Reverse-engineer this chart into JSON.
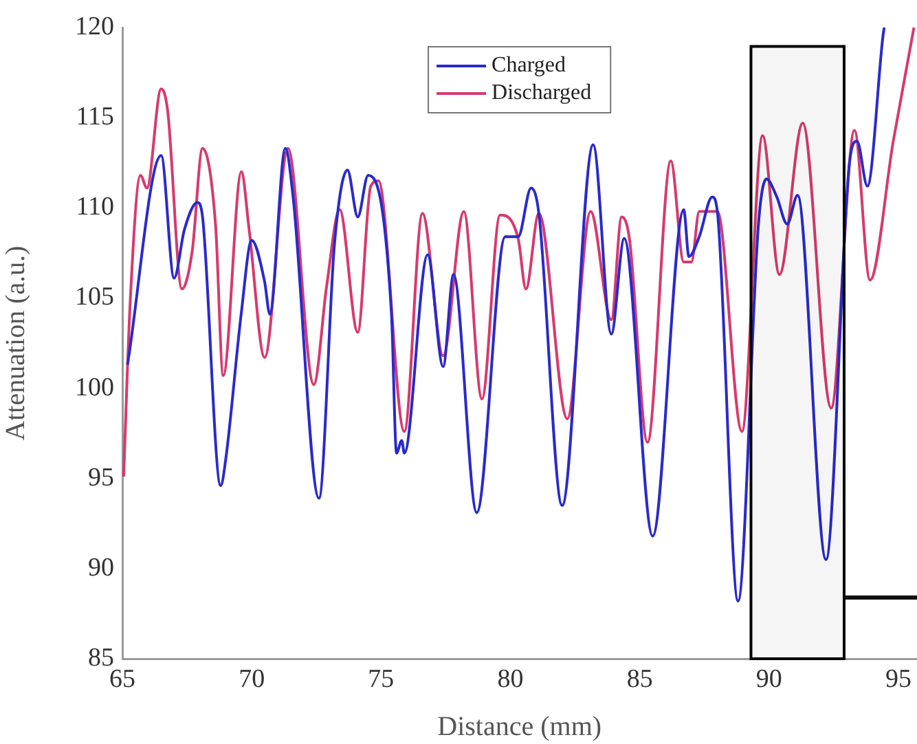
{
  "chart_data": {
    "type": "line",
    "xlabel": "Distance (mm)",
    "ylabel": "Attenuation (a.u.)",
    "xlim": [
      65,
      95.7
    ],
    "xticks": [
      65,
      70,
      75,
      80,
      85,
      90,
      95
    ],
    "ylim": [
      85,
      120
    ],
    "yticks": [
      85,
      90,
      95,
      100,
      105,
      110,
      115,
      120
    ],
    "grid": false,
    "legend": "top",
    "marker": "none",
    "line_style": "solid",
    "bands": [
      {
        "axis": "x",
        "from": 89.3,
        "to": 92.9,
        "color": "#000000"
      }
    ],
    "series": [
      {
        "name": "Charged",
        "color": "#2a2acb",
        "x": [
          65.2,
          66.5,
          67.0,
          67.4,
          67.9,
          68.1,
          68.8,
          69.0,
          69.6,
          70.0,
          70.5,
          70.7,
          71.3,
          71.6,
          72.6,
          73.2,
          73.7,
          74.1,
          74.5,
          75.4,
          75.6,
          75.8,
          75.9,
          76.8,
          77.4,
          77.8,
          78.7,
          79.8,
          80.3,
          80.8,
          81.1,
          82.0,
          83.2,
          83.9,
          84.4,
          85.5,
          86.7,
          86.9,
          87.3,
          87.8,
          88.0,
          88.8,
          89.6,
          89.9,
          90.3,
          90.7,
          91.1,
          92.2,
          93.1,
          93.4,
          93.8,
          94.4,
          94.45
        ],
        "values": [
          101.3,
          112.9,
          106.1,
          108.8,
          110.3,
          109.5,
          94.6,
          96.1,
          104.2,
          108.2,
          105.9,
          104.1,
          113.3,
          110.6,
          93.9,
          108.0,
          112.1,
          109.5,
          111.8,
          104.2,
          96.4,
          97.1,
          96.4,
          107.4,
          101.2,
          106.3,
          93.1,
          108.4,
          108.4,
          111.1,
          109.7,
          93.5,
          113.5,
          103.0,
          108.3,
          91.8,
          109.9,
          107.3,
          108.4,
          110.6,
          109.8,
          88.2,
          109.3,
          111.6,
          110.6,
          109.1,
          110.7,
          90.5,
          112.4,
          113.7,
          111.2,
          119.5,
          120
        ]
      },
      {
        "name": "Discharged",
        "color": "#d63a6e",
        "x": [
          65.05,
          65.3,
          65.7,
          65.95,
          66.5,
          66.75,
          67.3,
          67.7,
          68.1,
          68.6,
          68.9,
          69.6,
          69.9,
          70.5,
          71.4,
          72.4,
          72.9,
          73.4,
          74.1,
          74.6,
          74.9,
          75.9,
          76.6,
          77.4,
          78.2,
          78.9,
          79.6,
          80.3,
          80.6,
          81.1,
          82.2,
          83.1,
          83.9,
          84.3,
          84.6,
          85.3,
          86.2,
          86.7,
          87.0,
          87.3,
          88.0,
          88.95,
          89.75,
          90.4,
          91.3,
          92.4,
          93.3,
          93.9,
          94.8,
          95.6
        ],
        "values": [
          95.1,
          104.7,
          111.8,
          111.1,
          116.6,
          115.4,
          105.5,
          107.6,
          113.3,
          109.1,
          100.7,
          112.0,
          108.8,
          101.7,
          113.3,
          100.2,
          105.7,
          109.9,
          103.1,
          111.2,
          111.5,
          97.6,
          109.7,
          101.8,
          109.8,
          99.4,
          109.6,
          108.3,
          105.5,
          109.7,
          98.3,
          109.8,
          103.8,
          109.5,
          108.3,
          97.0,
          112.6,
          107.0,
          107.0,
          109.8,
          109.8,
          97.6,
          114.0,
          106.3,
          114.7,
          98.9,
          114.3,
          106.0,
          113.7,
          120
        ]
      }
    ]
  }
}
